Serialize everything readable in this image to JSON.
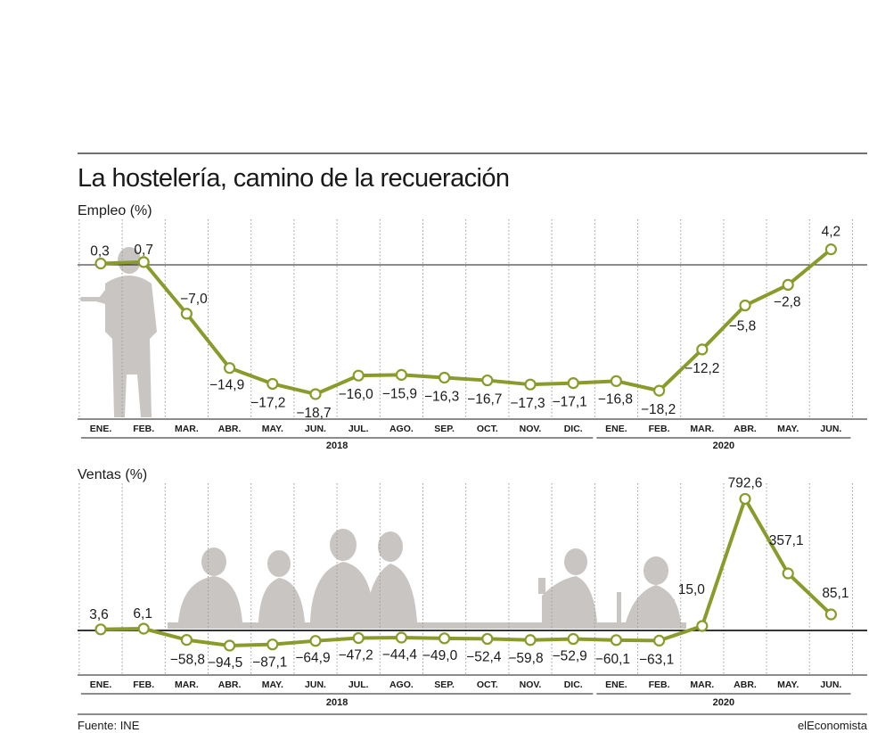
{
  "title": "La hostelería, camino de la recueración",
  "source": "Fuente: INE",
  "brand": "elEconomista",
  "colors": {
    "line": "#8a9a2b",
    "silhouette": "#c9c5c2",
    "grid": "#9a9a9a"
  },
  "chart_data": [
    {
      "type": "line",
      "name": "empleo",
      "ylabel": "Empleo (%)",
      "categories": [
        "ENE.",
        "FEB.",
        "MAR.",
        "ABR.",
        "MAY.",
        "JUN.",
        "JUL.",
        "AGO.",
        "SEP.",
        "OCT.",
        "NOV.",
        "DIC.",
        "ENE.",
        "FEB.",
        "MAR.",
        "ABR.",
        "MAY.",
        "JUN."
      ],
      "years": [
        {
          "label": "2018",
          "from": 0,
          "to": 11
        },
        {
          "label": "2020",
          "from": 12,
          "to": 17
        }
      ],
      "values": [
        0.3,
        0.7,
        -7.0,
        -14.9,
        -17.2,
        -18.7,
        -16.0,
        -15.9,
        -16.3,
        -16.7,
        -17.3,
        -17.1,
        -16.8,
        -18.2,
        -12.2,
        -5.8,
        -2.8,
        4.2
      ],
      "labels": [
        "0,3",
        "0,7",
        "−7,0",
        "−14,9",
        "−17,2",
        "−18,7",
        "−16,0",
        "−15,9",
        "−16,3",
        "−16,7",
        "−17,3",
        "−17,1",
        "−16,8",
        "−18,2",
        "−12,2",
        "−5,8",
        "−2,8",
        "4,2"
      ],
      "reference": 0
    },
    {
      "type": "line",
      "name": "ventas",
      "ylabel": "Ventas (%)",
      "categories": [
        "ENE.",
        "FEB.",
        "MAR.",
        "ABR.",
        "MAY.",
        "JUN.",
        "JUL.",
        "AGO.",
        "SEP.",
        "OCT.",
        "NOV.",
        "DIC.",
        "ENE.",
        "FEB.",
        "MAR.",
        "ABR.",
        "MAY.",
        "JUN."
      ],
      "years": [
        {
          "label": "2018",
          "from": 0,
          "to": 11
        },
        {
          "label": "2020",
          "from": 12,
          "to": 17
        }
      ],
      "values": [
        3.6,
        6.1,
        -58.8,
        -94.5,
        -87.1,
        -64.9,
        -47.2,
        -44.4,
        -49.0,
        -52.4,
        -59.8,
        -52.9,
        -60.1,
        -63.1,
        15.0,
        792.6,
        357.1,
        85.1
      ],
      "labels": [
        "3,6",
        "6,1",
        "−58,8",
        "−94,5",
        "−87,1",
        "−64,9",
        "−47,2",
        "−44,4",
        "−49,0",
        "−52,4",
        "−59,8",
        "−52,9",
        "−60,1",
        "−63,1",
        "15,0",
        "792,6",
        "357,1",
        "85,1"
      ],
      "reference": 0
    }
  ]
}
